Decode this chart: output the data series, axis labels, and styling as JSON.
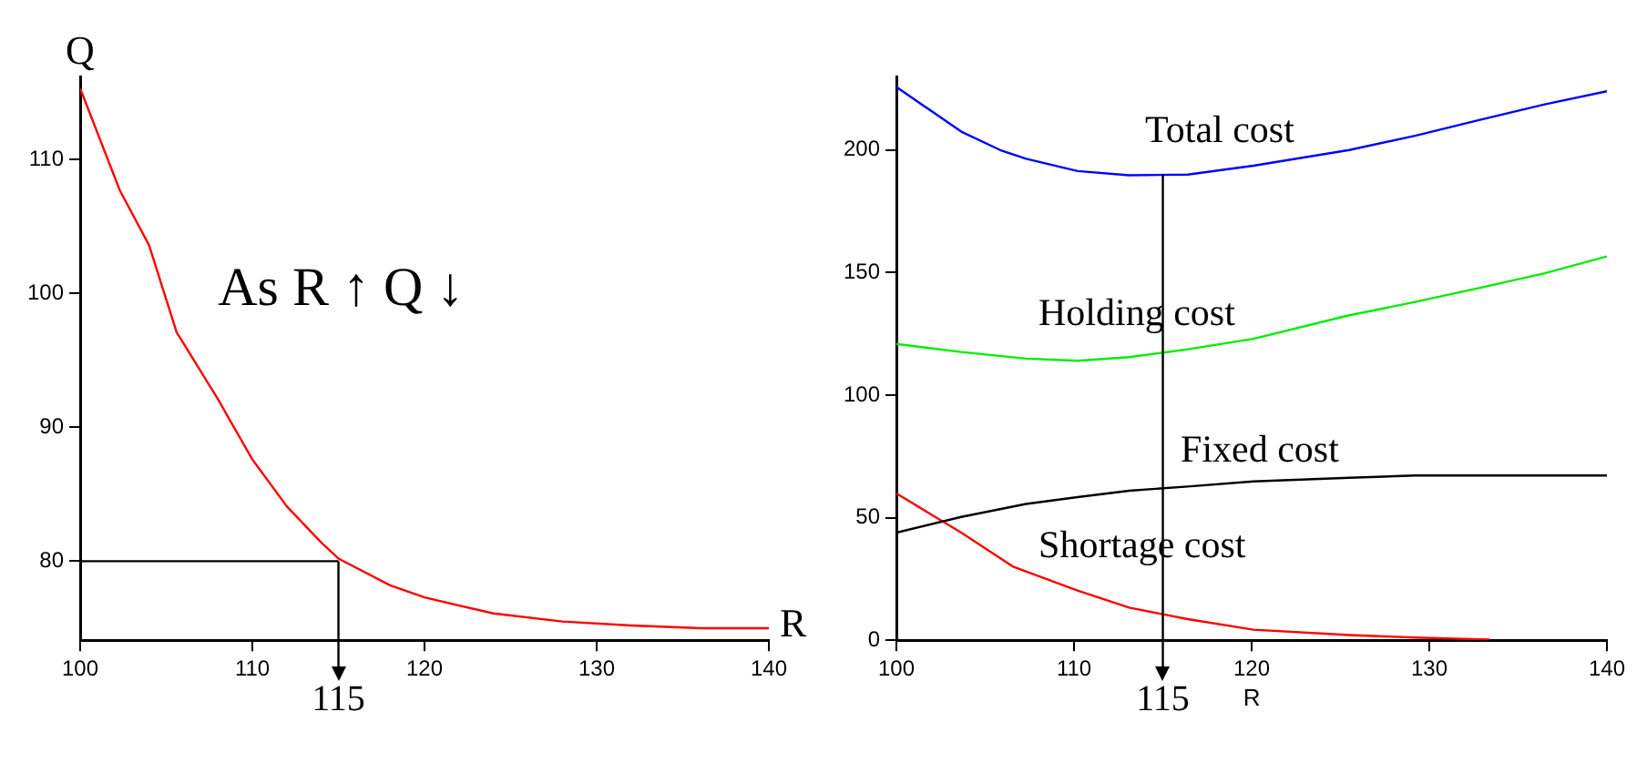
{
  "chart_data": [
    {
      "type": "line",
      "xlabel": "R",
      "ylabel": "Q",
      "color": "#ff0000",
      "x": [
        100,
        102.3,
        104,
        105.6,
        108,
        110,
        112,
        114,
        115,
        118,
        120,
        124,
        128,
        132,
        136,
        140
      ],
      "values": [
        115.3,
        107.7,
        103.6,
        97.1,
        92.1,
        87.6,
        84.1,
        81.4,
        80.2,
        78.2,
        77.3,
        76.1,
        75.5,
        75.2,
        75.0,
        75.0
      ],
      "xlim": [
        100,
        140
      ],
      "xticks": [
        100,
        110,
        120,
        130,
        140
      ],
      "ylim": [
        74.1,
        116.2
      ],
      "yticks": [
        80,
        90,
        100,
        110
      ],
      "annotations": [
        "As R ↑ Q ↓"
      ],
      "ref_lines": [
        {
          "axis": "y",
          "value": 80
        },
        {
          "axis": "x",
          "value": 115,
          "label": "115"
        }
      ],
      "grid": false,
      "legend": false,
      "marker": "none"
    },
    {
      "type": "line",
      "xlabel": "R",
      "x": [
        100,
        103.65,
        105.84,
        107.3,
        110.2,
        113.1,
        116.4,
        120.1,
        125.5,
        129.2,
        132.8,
        136.5,
        140
      ],
      "series": [
        {
          "name": "Total cost",
          "color": "#0000ff",
          "values": [
            225.7,
            207.5,
            200,
            196.4,
            191.4,
            189.7,
            190,
            193.6,
            200,
            205.8,
            212.2,
            218.6,
            224
          ]
        },
        {
          "name": "Holding cost",
          "color": "#00ee00",
          "values": [
            120.9,
            117.6,
            null,
            114.9,
            114,
            115.5,
            118.7,
            123,
            132.6,
            138,
            143.7,
            149.7,
            156.6
          ]
        },
        {
          "name": "Fixed cost",
          "color": "#000000",
          "values": [
            43.9,
            50.3,
            null,
            55.6,
            58.4,
            61,
            62.7,
            64.8,
            66.3,
            67.2,
            67.2,
            67.2,
            67.2
          ]
        },
        {
          "name": "Shortage cost",
          "color": "#ff0000",
          "x": [
            100,
            103.65,
            106.6,
            110.2,
            113.1,
            116.4,
            120.1,
            125.5,
            129.2,
            132.8,
            133.4
          ],
          "values": [
            59.9,
            43.9,
            29.9,
            20.3,
            13.3,
            8.6,
            4.3,
            2.1,
            1.1,
            0.4,
            0.3
          ]
        }
      ],
      "xlim": [
        100,
        140
      ],
      "xticks": [
        100,
        110,
        120,
        130,
        140
      ],
      "ylim": [
        0,
        230
      ],
      "yticks": [
        0,
        50,
        100,
        150,
        200
      ],
      "ref_lines": [
        {
          "axis": "x",
          "value": 115,
          "label": "115"
        }
      ],
      "grid": false,
      "legend": false,
      "marker": "none"
    }
  ]
}
